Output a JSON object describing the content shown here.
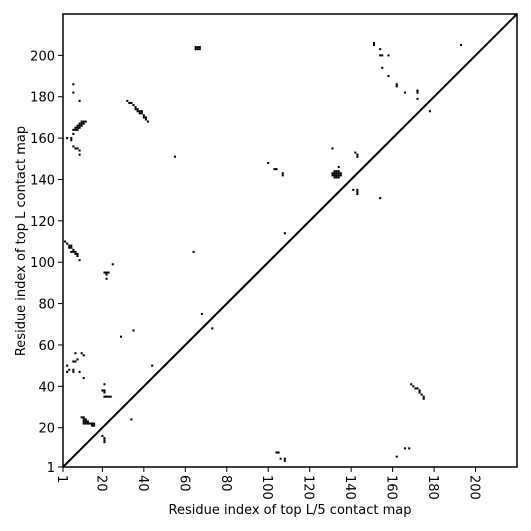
{
  "chart_data": {
    "type": "contact_map",
    "x_label": "Residue index of top L/5 contact map",
    "y_label": "Residue index of top L contact map",
    "xlim": [
      1,
      220
    ],
    "ylim": [
      1,
      220
    ],
    "xticks": [
      1,
      20,
      40,
      60,
      80,
      100,
      120,
      140,
      160,
      180,
      200
    ],
    "yticks": [
      1,
      20,
      40,
      60,
      80,
      100,
      120,
      140,
      160,
      180,
      200
    ],
    "diagonal": true,
    "series": [
      {
        "color": "#000000",
        "x": [
          65,
          66,
          67,
          65,
          66,
          67,
          6,
          6,
          9,
          10,
          11,
          12,
          9,
          10,
          11,
          8,
          9,
          10,
          7,
          8,
          9,
          6,
          7,
          8,
          6,
          3,
          5,
          5,
          6,
          7,
          8,
          9,
          9,
          32,
          33,
          34,
          35,
          36,
          36,
          37,
          37,
          38,
          39,
          38,
          39,
          40,
          40,
          41,
          41,
          42,
          55,
          100,
          103,
          104,
          107,
          107,
          131,
          134,
          132,
          133,
          134,
          131,
          132,
          133,
          134,
          135,
          131,
          132,
          133,
          134,
          135,
          132,
          133,
          134,
          142,
          143,
          143,
          141,
          143,
          143,
          143,
          154,
          108,
          151,
          151,
          154,
          155,
          154,
          158,
          155,
          158,
          162,
          162,
          166,
          172,
          172,
          172,
          178,
          193,
          2,
          3,
          4,
          5,
          4,
          5,
          6,
          5,
          6,
          7,
          7,
          8,
          8,
          9,
          64,
          21,
          22,
          23,
          22,
          22,
          25,
          3,
          4,
          3,
          6,
          6,
          6,
          7,
          8,
          7,
          10,
          11,
          9,
          11,
          44,
          35,
          29,
          68,
          73,
          21,
          20,
          21,
          21,
          21,
          22,
          23,
          24,
          10,
          11,
          11,
          12,
          11,
          12,
          13,
          11,
          12,
          13,
          14,
          15,
          16,
          15,
          16,
          34,
          20,
          21,
          21,
          21
        ],
        "y": [
          204,
          204,
          204,
          203,
          203,
          203,
          186,
          182,
          178,
          168,
          168,
          168,
          167,
          167,
          167,
          166,
          166,
          166,
          165,
          165,
          165,
          164,
          164,
          164,
          162,
          160,
          160,
          159,
          156,
          155,
          155,
          154,
          152,
          178,
          177,
          177,
          176,
          175,
          174,
          174,
          173,
          173,
          173,
          172,
          172,
          171,
          170,
          170,
          169,
          168,
          151,
          148,
          145,
          145,
          143,
          142,
          155,
          146,
          144,
          144,
          144,
          143,
          143,
          143,
          143,
          143,
          142,
          142,
          142,
          142,
          142,
          141,
          141,
          141,
          153,
          152,
          151,
          135,
          135,
          134,
          133,
          131,
          114,
          206,
          205,
          200,
          200,
          203,
          200,
          194,
          190,
          186,
          185,
          182,
          183,
          182,
          179,
          173,
          205,
          110,
          109,
          108,
          108,
          107,
          107,
          106,
          105,
          105,
          105,
          104,
          104,
          103,
          101,
          105,
          95,
          95,
          95,
          94,
          92,
          99,
          50,
          48,
          47,
          48,
          47,
          52,
          52,
          53,
          56,
          56,
          55,
          47,
          44,
          50,
          67,
          64,
          75,
          68,
          41,
          38,
          38,
          37,
          35,
          35,
          35,
          35,
          25,
          25,
          24,
          24,
          23,
          23,
          23,
          22,
          22,
          22,
          22,
          22,
          22,
          21,
          21,
          24,
          16,
          15,
          14,
          13
        ]
      },
      {
        "color": "#000000",
        "x": [
          169,
          170,
          171,
          172,
          173,
          173,
          174,
          175,
          175,
          166,
          168,
          162,
          104,
          105,
          106,
          108,
          108
        ],
        "y": [
          41,
          40,
          39,
          39,
          38,
          37,
          36,
          35,
          34,
          10,
          10,
          6,
          8,
          8,
          5,
          5,
          4
        ]
      }
    ]
  }
}
